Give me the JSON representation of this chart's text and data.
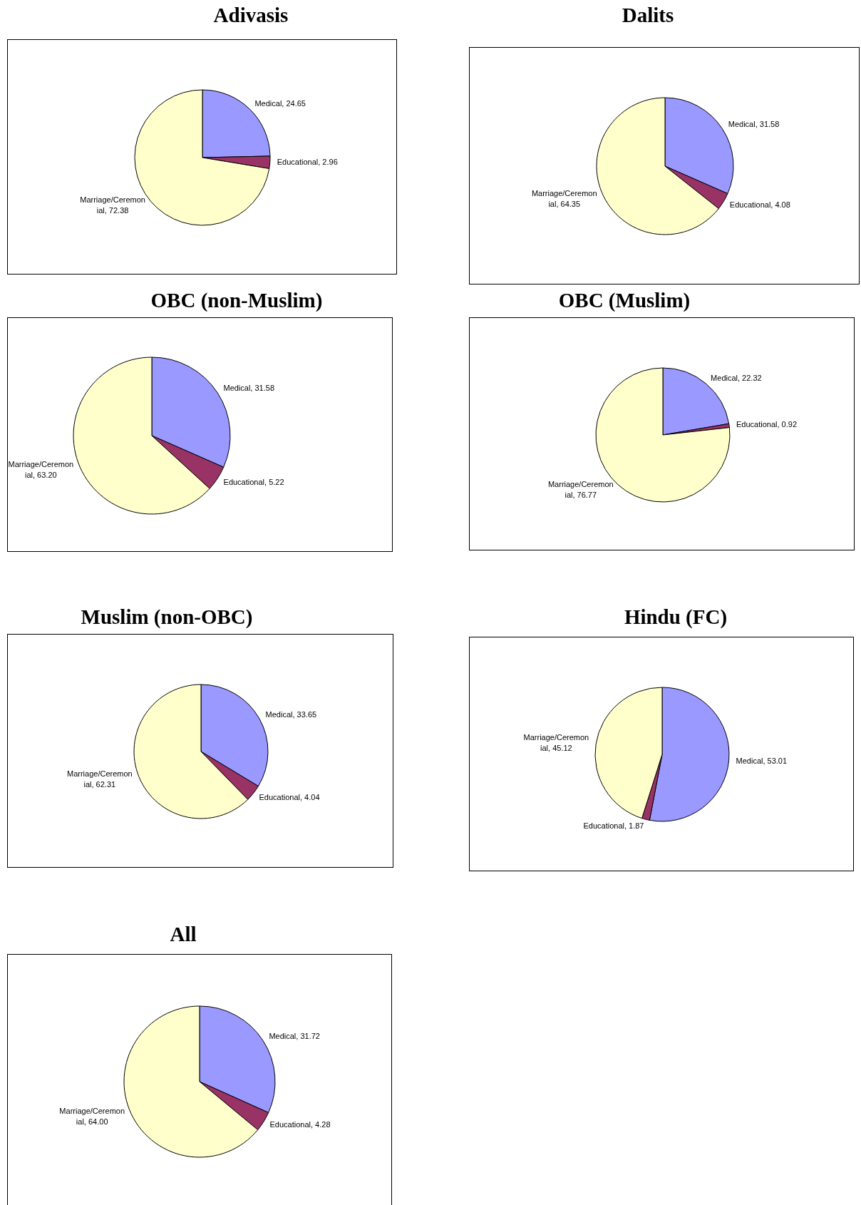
{
  "chart_data": [
    {
      "type": "pie",
      "title": "Adivasis",
      "categories": [
        "Medical",
        "Educational",
        "Marriage/Ceremonial"
      ],
      "values": [
        24.65,
        2.96,
        72.38
      ],
      "value_labels": [
        "24.65",
        "2.96",
        "72.38"
      ],
      "colors": [
        "#9999ff",
        "#993366",
        "#ffffcc"
      ]
    },
    {
      "type": "pie",
      "title": "Dalits",
      "categories": [
        "Medical",
        "Educational",
        "Marriage/Ceremonial"
      ],
      "values": [
        31.58,
        4.08,
        64.35
      ],
      "value_labels": [
        "31.58",
        "4.08",
        "64.35"
      ],
      "colors": [
        "#9999ff",
        "#993366",
        "#ffffcc"
      ]
    },
    {
      "type": "pie",
      "title": "OBC (non-Muslim)",
      "categories": [
        "Medical",
        "Educational",
        "Marriage/Ceremonial"
      ],
      "values": [
        31.58,
        5.22,
        63.2
      ],
      "value_labels": [
        "31.58",
        "5.22",
        "63.20"
      ],
      "colors": [
        "#9999ff",
        "#993366",
        "#ffffcc"
      ]
    },
    {
      "type": "pie",
      "title": "OBC (Muslim)",
      "categories": [
        "Medical",
        "Educational",
        "Marriage/Ceremonial"
      ],
      "values": [
        22.32,
        0.92,
        76.77
      ],
      "value_labels": [
        "22.32",
        "0.92",
        "76.77"
      ],
      "colors": [
        "#9999ff",
        "#993366",
        "#ffffcc"
      ]
    },
    {
      "type": "pie",
      "title": "Muslim (non-OBC)",
      "categories": [
        "Medical",
        "Educational",
        "Marriage/Ceremonial"
      ],
      "values": [
        33.65,
        4.04,
        62.31
      ],
      "value_labels": [
        "33.65",
        "4.04",
        "62.31"
      ],
      "colors": [
        "#9999ff",
        "#993366",
        "#ffffcc"
      ]
    },
    {
      "type": "pie",
      "title": "Hindu (FC)",
      "categories": [
        "Medical",
        "Educational",
        "Marriage/Ceremonial"
      ],
      "values": [
        53.01,
        1.87,
        45.12
      ],
      "value_labels": [
        "53.01",
        "1.87",
        "45.12"
      ],
      "colors": [
        "#9999ff",
        "#993366",
        "#ffffcc"
      ]
    },
    {
      "type": "pie",
      "title": "All",
      "categories": [
        "Medical",
        "Educational",
        "Marriage/Ceremonial"
      ],
      "values": [
        31.72,
        4.28,
        64.0
      ],
      "value_labels": [
        "31.72",
        "4.28",
        "64.00"
      ],
      "colors": [
        "#9999ff",
        "#993366",
        "#ffffcc"
      ]
    }
  ]
}
